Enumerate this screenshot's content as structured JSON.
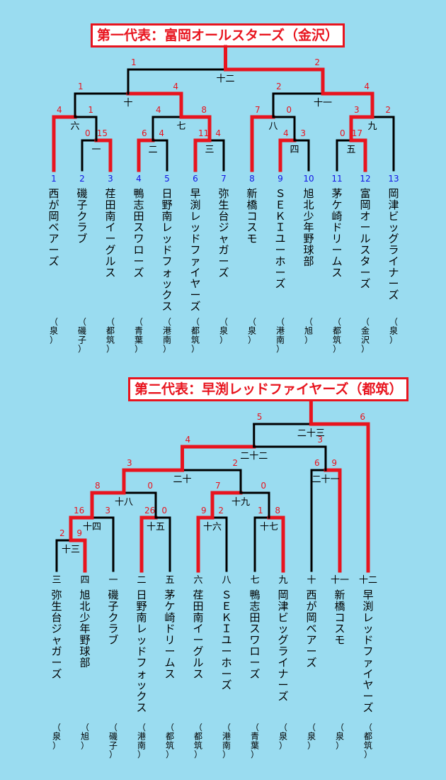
{
  "colors": {
    "background": "#9adcf0",
    "winner_line": "#e8141e",
    "loser_line": "#000000",
    "score": "#e8141e",
    "seed": "#1414e6",
    "text": "#000000"
  },
  "bracket1": {
    "title": "第一代表：富岡オールスターズ（金沢）",
    "teams": [
      {
        "seed": "1",
        "name": "西が岡ベアーズ",
        "region": "（泉）"
      },
      {
        "seed": "2",
        "name": "磯子クラブ",
        "region": "（磯子）"
      },
      {
        "seed": "3",
        "name": "荏田南イーグルス",
        "region": "（都筑）"
      },
      {
        "seed": "4",
        "name": "鴨志田スワローズ",
        "region": "（青葉）"
      },
      {
        "seed": "5",
        "name": "日野南レッドフォックス",
        "region": "（港南）"
      },
      {
        "seed": "6",
        "name": "早渕レッドファイヤーズ",
        "region": "（都筑）"
      },
      {
        "seed": "7",
        "name": "弥生台ジャガーズ",
        "region": "（泉）"
      },
      {
        "seed": "8",
        "name": "新橋コスモ",
        "region": "（泉）"
      },
      {
        "seed": "9",
        "name": "ＳＥＫＩユーホーズ",
        "region": "（港南）"
      },
      {
        "seed": "10",
        "name": "旭北少年野球部",
        "region": "（旭）"
      },
      {
        "seed": "11",
        "name": "茅ケ崎ドリームス",
        "region": "（都筑）"
      },
      {
        "seed": "12",
        "name": "富岡オールスターズ",
        "region": "（金沢）"
      },
      {
        "seed": "13",
        "name": "岡津ビッグライナーズ",
        "region": "（泉）"
      }
    ],
    "matches": [
      {
        "no": "一",
        "left_score": "0",
        "right_score": "15"
      },
      {
        "no": "二",
        "left_score": "6",
        "right_score": "4"
      },
      {
        "no": "三",
        "left_score": "11",
        "right_score": "4"
      },
      {
        "no": "四",
        "left_score": "4",
        "right_score": "3"
      },
      {
        "no": "五",
        "left_score": "0",
        "right_score": "17"
      },
      {
        "no": "六",
        "left_score": "4",
        "right_score": "1"
      },
      {
        "no": "七",
        "left_score": "4",
        "right_score": "8"
      },
      {
        "no": "八",
        "left_score": "7",
        "right_score": "0"
      },
      {
        "no": "九",
        "left_score": "3",
        "right_score": "2"
      },
      {
        "no": "十",
        "left_score": "1",
        "right_score": "4"
      },
      {
        "no": "十一",
        "left_score": "2",
        "right_score": "4"
      },
      {
        "no": "十二",
        "left_score": "1",
        "right_score": "2"
      }
    ]
  },
  "bracket2": {
    "title": "第二代表：早渕レッドファイヤーズ（都筑）",
    "teams": [
      {
        "slot": "三",
        "name": "弥生台ジャガーズ",
        "region": "（泉）"
      },
      {
        "slot": "四",
        "name": "旭北少年野球部",
        "region": "（旭）"
      },
      {
        "slot": "一",
        "name": "磯子クラブ",
        "region": "（磯子）"
      },
      {
        "slot": "二",
        "name": "日野南レッドフォックス",
        "region": "（港南）"
      },
      {
        "slot": "五",
        "name": "茅ケ崎ドリームス",
        "region": "（都筑）"
      },
      {
        "slot": "六",
        "name": "荏田南イーグルス",
        "region": "（都筑）"
      },
      {
        "slot": "八",
        "name": "ＳＥＫＩユーホーズ",
        "region": "（港南）"
      },
      {
        "slot": "七",
        "name": "鴨志田スワローズ",
        "region": "（青葉）"
      },
      {
        "slot": "九",
        "name": "岡津ビッグライナーズ",
        "region": "（泉）"
      },
      {
        "slot": "十",
        "name": "西が岡ベアーズ",
        "region": "（泉）"
      },
      {
        "slot": "十一",
        "name": "新橋コスモ",
        "region": "（泉）"
      },
      {
        "slot": "十二",
        "name": "早渕レッドファイヤーズ",
        "region": "（都筑）"
      }
    ],
    "matches": [
      {
        "no": "十三",
        "left_score": "2",
        "right_score": "9"
      },
      {
        "no": "十四",
        "left_score": "16",
        "right_score": "3"
      },
      {
        "no": "十五",
        "left_score": "26",
        "right_score": "0"
      },
      {
        "no": "十六",
        "left_score": "9",
        "right_score": "2"
      },
      {
        "no": "十七",
        "left_score": "1",
        "right_score": "8"
      },
      {
        "no": "十八",
        "left_score": "8",
        "right_score": "0"
      },
      {
        "no": "十九",
        "left_score": "7",
        "right_score": "0"
      },
      {
        "no": "二十",
        "left_score": "3",
        "right_score": "2"
      },
      {
        "no": "二十一",
        "left_score": "6",
        "right_score": "9"
      },
      {
        "no": "二十二",
        "left_score": "4",
        "right_score": "3"
      },
      {
        "no": "二十三",
        "left_score": "5",
        "right_score": "6"
      }
    ]
  }
}
